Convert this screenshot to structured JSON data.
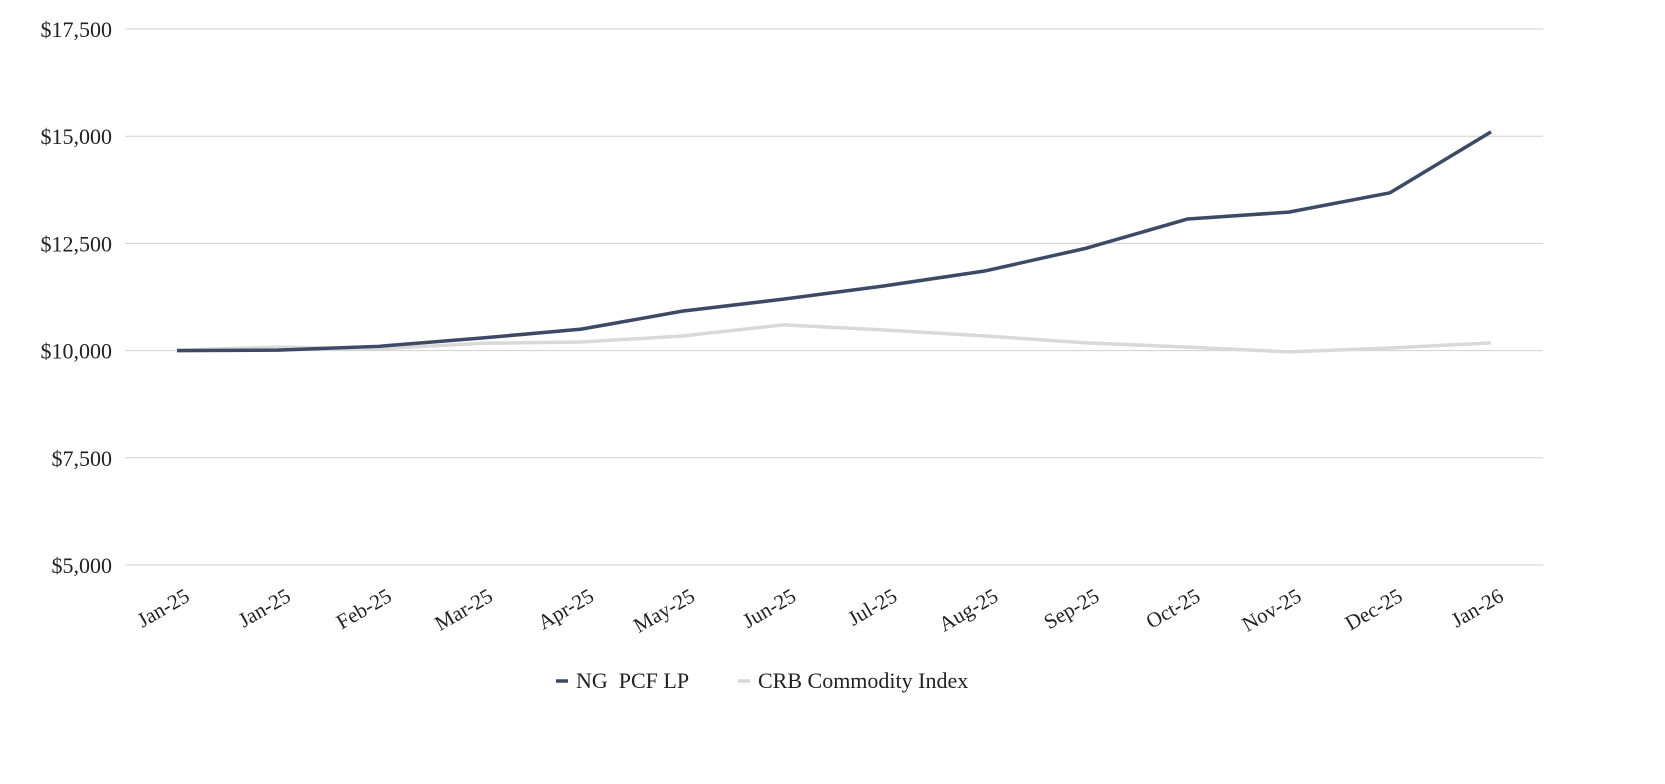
{
  "chart_data": {
    "type": "line",
    "title": "",
    "xlabel": "",
    "ylabel": "",
    "categories": [
      "Jan-25",
      "Jan-25",
      "Feb-25",
      "Mar-25",
      "Apr-25",
      "May-25",
      "Jun-25",
      "Jul-25",
      "Aug-25",
      "Sep-25",
      "Oct-25",
      "Nov-25",
      "Dec-25",
      "Jan-26"
    ],
    "ylim": [
      5000,
      17500
    ],
    "yticks": [
      5000,
      7500,
      10000,
      12500,
      15000,
      17500
    ],
    "ytick_labels": [
      "$5,000",
      "$7,500",
      "$10,000",
      "$12,500",
      "$15,000",
      "$17,500"
    ],
    "grid": true,
    "legend_position": "bottom-center",
    "series": [
      {
        "name": "NG  PCF LP",
        "color": "#3d4a66",
        "values": [
          10000,
          10010,
          10100,
          10290,
          10500,
          10920,
          11200,
          11510,
          11860,
          12390,
          13070,
          13230,
          13680,
          15100
        ]
      },
      {
        "name": "CRB Commodity Index",
        "color": "#d9d9d9",
        "values": [
          10010,
          10080,
          10040,
          10170,
          10200,
          10340,
          10600,
          10480,
          10340,
          10180,
          10080,
          9970,
          10060,
          10180
        ]
      }
    ]
  }
}
